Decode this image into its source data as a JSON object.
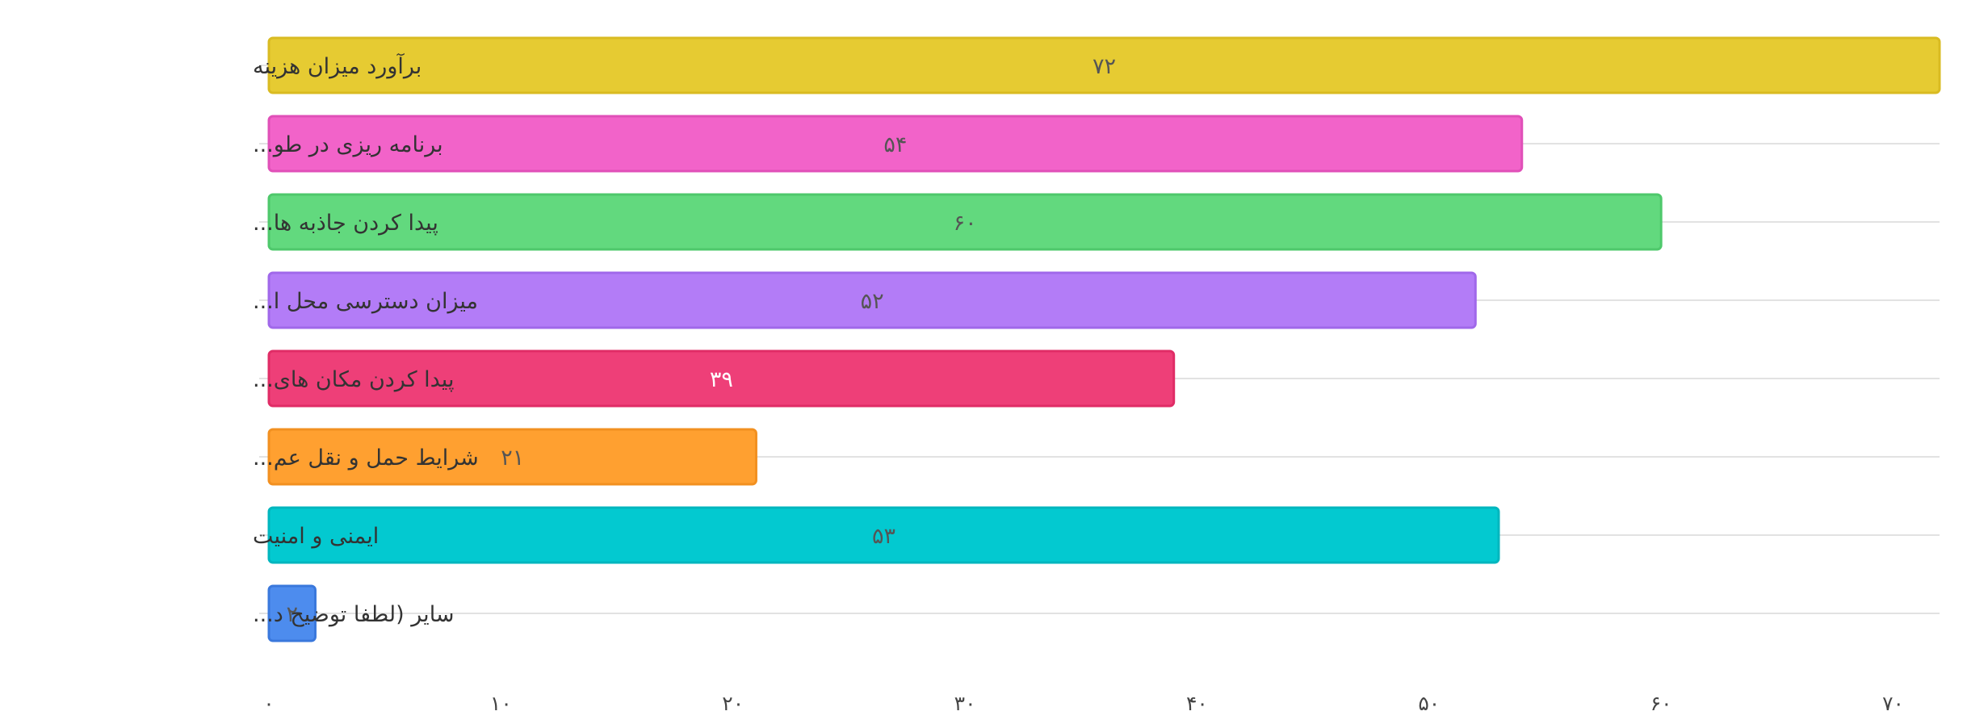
{
  "chart_data": {
    "type": "bar",
    "orientation": "horizontal",
    "title": "",
    "xlabel": "",
    "ylabel": "",
    "categories": [
      "برآورد میزان هزینه",
      "برنامه ریزی در طو...",
      "پیدا کردن جاذبه ها...",
      "میزان دسترسی محل ا...",
      "پیدا کردن مکان های...",
      "شرایط حمل و نقل عم...",
      "ایمنی و امنیت",
      "سایر (لطفا توضیح د..."
    ],
    "values": [
      72,
      54,
      60,
      52,
      39,
      21,
      53,
      2
    ],
    "value_labels": [
      "۷۲",
      "۵۴",
      "۶۰",
      "۵۲",
      "۳۹",
      "۲۱",
      "۵۳",
      "۲"
    ],
    "colors": [
      "#e6cb32",
      "#f263c9",
      "#62d97e",
      "#b37cf7",
      "#ee3f78",
      "#ffa030",
      "#03c9d0",
      "#4d8cee"
    ],
    "border_colors": [
      "#d9bb22",
      "#e050b8",
      "#4ec86b",
      "#a068ea",
      "#e02c66",
      "#f29020",
      "#00b6be",
      "#3a78dc"
    ],
    "label_colors": [
      "#555555",
      "#555555",
      "#555555",
      "#555555",
      "#ffffff",
      "#555555",
      "#555555",
      "#555555"
    ],
    "xlim": [
      0,
      72
    ],
    "x_ticks": [
      0,
      10,
      20,
      30,
      40,
      50,
      60,
      70
    ],
    "x_tick_labels": [
      "۰",
      "۱۰",
      "۲۰",
      "۳۰",
      "۴۰",
      "۵۰",
      "۶۰",
      "۷۰"
    ],
    "grid": "horizontal",
    "legend": "none"
  }
}
